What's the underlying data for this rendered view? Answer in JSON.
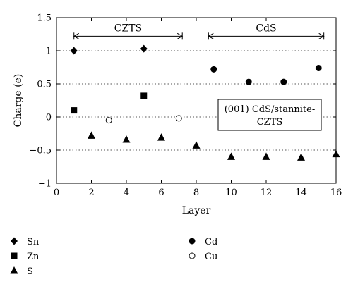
{
  "chart_data": {
    "type": "scatter",
    "xlabel": "Layer",
    "ylabel": "Charge (e)",
    "xlim": [
      0,
      16
    ],
    "ylim": [
      -1,
      1.5
    ],
    "xticks": [
      0,
      2,
      4,
      6,
      8,
      10,
      12,
      14,
      16
    ],
    "yticks": [
      -1,
      -0.5,
      0,
      0.5,
      1,
      1.5
    ],
    "ytick_labels": [
      "−1",
      "−0.5",
      "0",
      "0.5",
      "1",
      "1.5"
    ],
    "grid": "dotted horizontal lines at -0.5, 0, 0.5, 1",
    "regions": [
      {
        "label": "CZTS",
        "x_start": 1,
        "x_end": 7.2
      },
      {
        "label": "CdS",
        "x_start": 8.7,
        "x_end": 15.3
      }
    ],
    "annotation": {
      "lines": [
        "(001) CdS/stannite-",
        "CZTS"
      ]
    },
    "series": [
      {
        "name": "Sn",
        "marker": "diamond",
        "points": [
          [
            1,
            1.0
          ],
          [
            5,
            1.03
          ]
        ]
      },
      {
        "name": "Zn",
        "marker": "square",
        "points": [
          [
            1,
            0.1
          ],
          [
            5,
            0.32
          ]
        ]
      },
      {
        "name": "S",
        "marker": "triangle",
        "points": [
          [
            2,
            -0.28
          ],
          [
            4,
            -0.34
          ],
          [
            6,
            -0.31
          ],
          [
            8,
            -0.43
          ],
          [
            10,
            -0.6
          ],
          [
            12,
            -0.6
          ],
          [
            14,
            -0.61
          ],
          [
            16,
            -0.56
          ]
        ]
      },
      {
        "name": "Cd",
        "marker": "circle-filled",
        "points": [
          [
            9,
            0.72
          ],
          [
            11,
            0.53
          ],
          [
            13,
            0.53
          ],
          [
            15,
            0.74
          ]
        ]
      },
      {
        "name": "Cu",
        "marker": "circle-open",
        "points": [
          [
            3,
            -0.05
          ],
          [
            7,
            -0.02
          ]
        ]
      }
    ],
    "legend_placement": "bottom"
  }
}
